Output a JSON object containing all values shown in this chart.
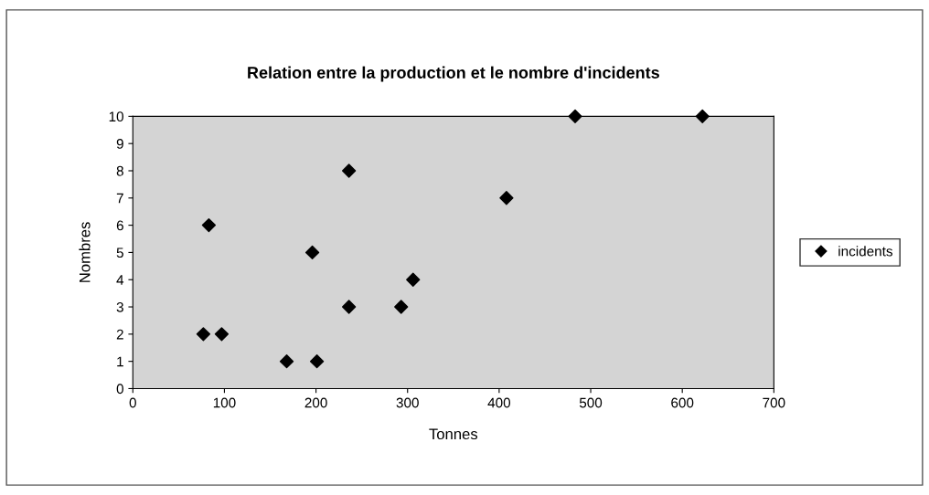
{
  "chart_data": {
    "type": "scatter",
    "title": "Relation entre la production et le nombre d'incidents",
    "xlabel": "Tonnes",
    "ylabel": "Nombres",
    "x": [
      77,
      83,
      97,
      168,
      196,
      201,
      236,
      236,
      293,
      306,
      408,
      483,
      622
    ],
    "series": [
      {
        "name": "incidents",
        "color": "#000000",
        "values": [
          2,
          6,
          2,
          1,
          5,
          1,
          8,
          3,
          3,
          4,
          7,
          10,
          10
        ]
      }
    ],
    "xlim": [
      0,
      700
    ],
    "xticks": [
      0,
      100,
      200,
      300,
      400,
      500,
      600,
      700
    ],
    "ylim": [
      0,
      10
    ],
    "yticks": [
      0,
      1,
      2,
      3,
      4,
      5,
      6,
      7,
      8,
      9,
      10
    ],
    "marker": "diamond",
    "legend": "right",
    "grid": false
  }
}
